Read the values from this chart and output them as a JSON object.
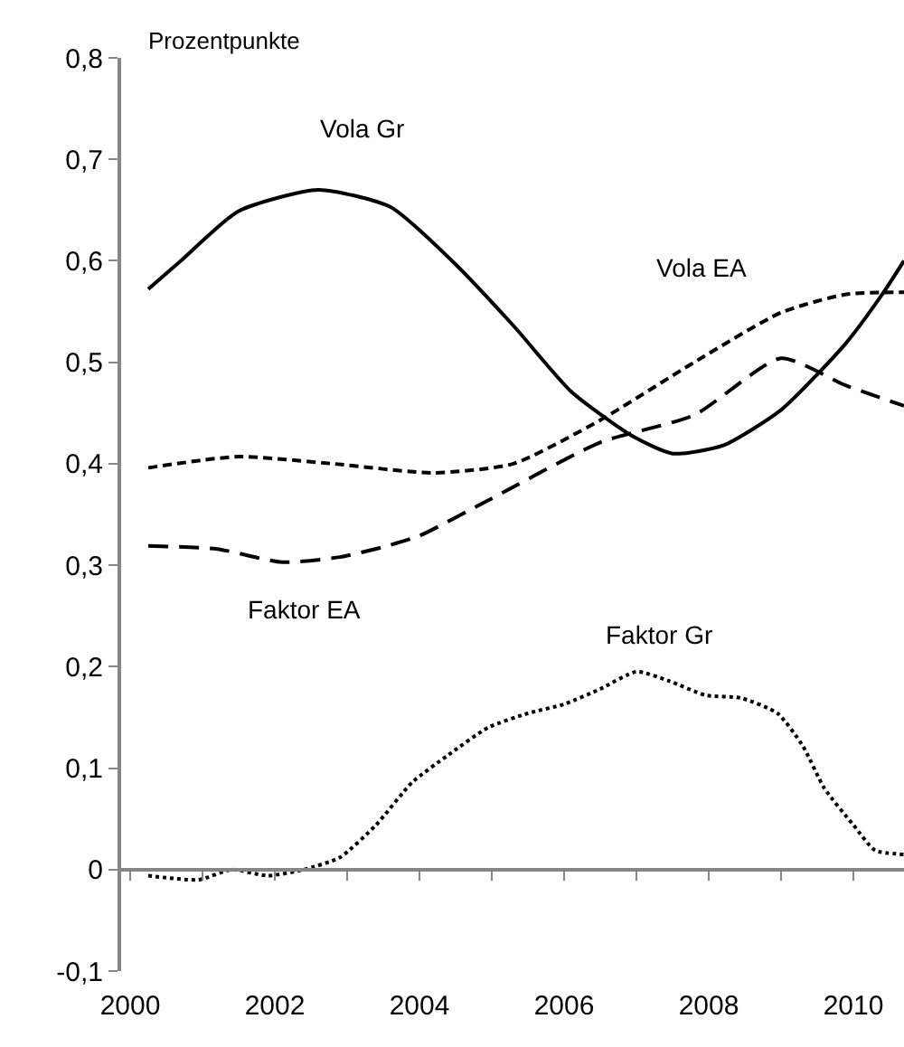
{
  "chart_data": {
    "type": "line",
    "ylabel": "Prozentpunkte",
    "xlim": [
      1999.875,
      2010.7
    ],
    "xticks": [
      2000,
      {
        "value": 2001,
        "label": null
      },
      2002,
      {
        "value": 2003,
        "label": null
      },
      2004,
      {
        "value": 2005,
        "label": null
      },
      2006,
      {
        "value": 2007,
        "label": null
      },
      2008,
      {
        "value": 2009,
        "label": null
      },
      2010
    ],
    "ylim": [
      -0.1,
      0.8
    ],
    "yticks": [
      {
        "value": -0.1,
        "label": "-0,1"
      },
      0,
      {
        "value": 0.1,
        "label": "0,1"
      },
      {
        "value": 0.2,
        "label": "0,2"
      },
      {
        "value": 0.3,
        "label": "0,3"
      },
      {
        "value": 0.4,
        "label": "0,4"
      },
      {
        "value": 0.5,
        "label": "0,5"
      },
      {
        "value": 0.6,
        "label": "0,6"
      },
      {
        "value": 0.7,
        "label": "0,7"
      },
      {
        "value": 0.8,
        "label": "0,8"
      }
    ],
    "legend": false,
    "marker": "none",
    "series": [
      {
        "name": "Vola Gr",
        "color": "#000000",
        "line_style": "solid",
        "x": [
          2000.25,
          2000.7,
          2001.5,
          2002.6,
          2003.6,
          2004.45,
          2005.3,
          2006.1,
          2006.95,
          2007.5,
          2008.2,
          2009.0,
          2009.9,
          2010.4,
          2010.7
        ],
        "values": [
          0.572,
          0.6,
          0.649,
          0.67,
          0.653,
          0.6,
          0.536,
          0.471,
          0.427,
          0.41,
          0.418,
          0.453,
          0.519,
          0.567,
          0.6
        ]
      },
      {
        "name": "Vola EA",
        "color": "#000000",
        "line_style": "dashed",
        "x": [
          2000.25,
          2001.5,
          2002.8,
          2004.2,
          2005.3,
          2006.5,
          2007.8,
          2009.0,
          2009.9,
          2010.7
        ],
        "values": [
          0.396,
          0.407,
          0.4,
          0.391,
          0.4,
          0.443,
          0.5,
          0.549,
          0.567,
          0.569
        ]
      },
      {
        "name": "Faktor EA",
        "color": "#000000",
        "line_style": "dashed",
        "x": [
          2000.25,
          2001.2,
          2002.1,
          2002.9,
          2003.5,
          2004.0,
          2004.9,
          2006.5,
          2007.8,
          2009.0,
          2009.9,
          2010.7
        ],
        "values": [
          0.319,
          0.316,
          0.303,
          0.308,
          0.318,
          0.329,
          0.362,
          0.421,
          0.448,
          0.504,
          0.477,
          0.457
        ]
      },
      {
        "name": "Faktor Gr",
        "color": "#000000",
        "line_style": "dotted",
        "x": [
          2000.25,
          2000.95,
          2001.4,
          2001.9,
          2002.4,
          2002.9,
          2003.4,
          2003.9,
          2004.4,
          2004.95,
          2005.5,
          2006.0,
          2006.5,
          2007.0,
          2007.45,
          2007.95,
          2008.45,
          2008.95,
          2009.3,
          2009.6,
          2010.0,
          2010.3,
          2010.7
        ],
        "values": [
          -0.006,
          -0.01,
          0.0,
          -0.006,
          0.0,
          0.012,
          0.044,
          0.086,
          0.113,
          0.14,
          0.154,
          0.163,
          0.178,
          0.195,
          0.186,
          0.172,
          0.169,
          0.154,
          0.122,
          0.08,
          0.044,
          0.019,
          0.015
        ]
      }
    ]
  }
}
